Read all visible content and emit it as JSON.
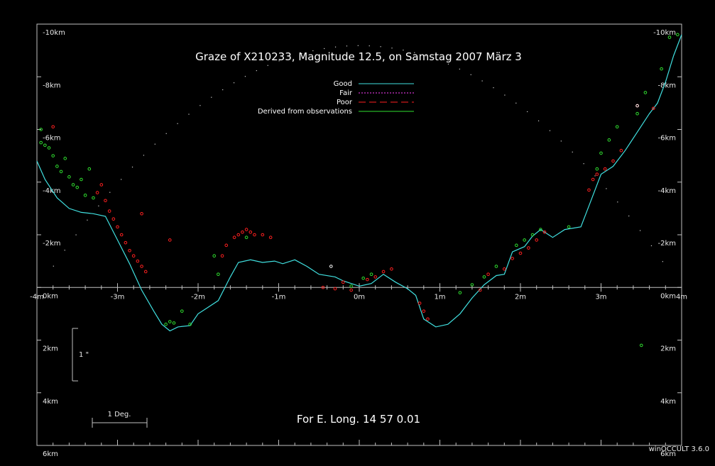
{
  "window": {
    "version": "winOCCULT 3.6.0"
  },
  "chart_data": {
    "type": "scatter",
    "title": "Graze of  X210233,  Magnitude  12.5,  on Samstag  2007  März   3",
    "footer": "For E. Long.   14 57  0.01",
    "scale_bar_deg": "1 Deg.",
    "scale_bar_arcsec": "1 \"",
    "xlim": [
      -4,
      4
    ],
    "ylim": [
      6,
      -10
    ],
    "x_ticks": [
      "-4m",
      "-3m",
      "-2m",
      "-1m",
      "0m",
      "1m",
      "2m",
      "3m",
      "4m"
    ],
    "y_ticks_left": [
      "-10km",
      "-8km",
      "-6km",
      "-4km",
      "-2km",
      "0km",
      "2km",
      "4km",
      "6km"
    ],
    "y_ticks_right": [
      "-10km",
      "-8km",
      "-6km",
      "-4km",
      "-2km",
      "0km",
      "2km",
      "4km",
      "6km"
    ],
    "legend": [
      {
        "label": "Good",
        "color": "#40e0e0",
        "style": "solid"
      },
      {
        "label": "Fair",
        "color": "#ff40ff",
        "style": "dotted"
      },
      {
        "label": "Poor",
        "color": "#ff2020",
        "style": "dashed"
      },
      {
        "label": "Derived from observations",
        "color": "#30e030",
        "style": "solid"
      }
    ],
    "colors": {
      "good": "#40e0e0",
      "red_obs": "#ff2020",
      "green_obs": "#30e030",
      "axis": "#c0c0c0"
    },
    "limb_profile": [
      [
        -4.0,
        -4.8
      ],
      [
        -3.9,
        -4.1
      ],
      [
        -3.75,
        -3.4
      ],
      [
        -3.6,
        -3.0
      ],
      [
        -3.45,
        -2.85
      ],
      [
        -3.3,
        -2.8
      ],
      [
        -3.15,
        -2.7
      ],
      [
        -3.0,
        -1.8
      ],
      [
        -2.85,
        -0.9
      ],
      [
        -2.7,
        0.1
      ],
      [
        -2.55,
        0.9
      ],
      [
        -2.45,
        1.4
      ],
      [
        -2.35,
        1.65
      ],
      [
        -2.25,
        1.5
      ],
      [
        -2.1,
        1.45
      ],
      [
        -2.0,
        1.0
      ],
      [
        -1.9,
        0.8
      ],
      [
        -1.75,
        0.5
      ],
      [
        -1.6,
        -0.4
      ],
      [
        -1.5,
        -0.95
      ],
      [
        -1.35,
        -1.05
      ],
      [
        -1.2,
        -0.95
      ],
      [
        -1.05,
        -1.0
      ],
      [
        -0.95,
        -0.9
      ],
      [
        -0.8,
        -1.05
      ],
      [
        -0.65,
        -0.8
      ],
      [
        -0.5,
        -0.5
      ],
      [
        -0.3,
        -0.4
      ],
      [
        -0.2,
        -0.25
      ],
      [
        -0.1,
        -0.15
      ],
      [
        0.0,
        -0.05
      ],
      [
        0.15,
        -0.15
      ],
      [
        0.3,
        -0.5
      ],
      [
        0.45,
        -0.2
      ],
      [
        0.6,
        0.05
      ],
      [
        0.7,
        0.3
      ],
      [
        0.8,
        1.2
      ],
      [
        0.95,
        1.5
      ],
      [
        1.1,
        1.4
      ],
      [
        1.25,
        1.0
      ],
      [
        1.4,
        0.4
      ],
      [
        1.55,
        -0.1
      ],
      [
        1.7,
        -0.45
      ],
      [
        1.8,
        -0.5
      ],
      [
        1.9,
        -1.35
      ],
      [
        2.05,
        -1.55
      ],
      [
        2.15,
        -1.95
      ],
      [
        2.25,
        -2.2
      ],
      [
        2.4,
        -1.9
      ],
      [
        2.55,
        -2.2
      ],
      [
        2.75,
        -2.3
      ],
      [
        2.85,
        -3.1
      ],
      [
        3.0,
        -4.3
      ],
      [
        3.15,
        -4.6
      ],
      [
        3.3,
        -5.2
      ],
      [
        3.45,
        -5.9
      ],
      [
        3.6,
        -6.6
      ],
      [
        3.7,
        -7.0
      ],
      [
        3.8,
        -7.8
      ],
      [
        3.9,
        -8.8
      ],
      [
        4.0,
        -9.6
      ]
    ],
    "red_observations": [
      [
        -3.8,
        -6.1
      ],
      [
        -3.25,
        -3.6
      ],
      [
        -3.2,
        -3.9
      ],
      [
        -3.15,
        -3.3
      ],
      [
        -3.1,
        -2.9
      ],
      [
        -3.05,
        -2.6
      ],
      [
        -3.0,
        -2.3
      ],
      [
        -2.95,
        -2.0
      ],
      [
        -2.9,
        -1.7
      ],
      [
        -2.85,
        -1.4
      ],
      [
        -2.8,
        -1.2
      ],
      [
        -2.75,
        -1.0
      ],
      [
        -2.7,
        -0.8
      ],
      [
        -2.65,
        -0.6
      ],
      [
        -2.7,
        -2.8
      ],
      [
        -2.35,
        -1.8
      ],
      [
        -1.7,
        -1.2
      ],
      [
        -1.65,
        -1.6
      ],
      [
        -1.55,
        -1.9
      ],
      [
        -1.5,
        -2.0
      ],
      [
        -1.45,
        -2.1
      ],
      [
        -1.4,
        -2.2
      ],
      [
        -1.35,
        -2.1
      ],
      [
        -1.3,
        -2.0
      ],
      [
        -1.2,
        -2.0
      ],
      [
        -1.1,
        -1.9
      ],
      [
        -0.45,
        0.0
      ],
      [
        -0.3,
        0.05
      ],
      [
        -0.2,
        -0.2
      ],
      [
        -0.1,
        0.1
      ],
      [
        0.1,
        -0.3
      ],
      [
        0.2,
        -0.4
      ],
      [
        0.3,
        -0.6
      ],
      [
        0.4,
        -0.7
      ],
      [
        0.75,
        0.6
      ],
      [
        0.8,
        0.9
      ],
      [
        0.85,
        1.2
      ],
      [
        1.5,
        0.1
      ],
      [
        1.6,
        -0.5
      ],
      [
        1.8,
        -0.7
      ],
      [
        1.9,
        -1.1
      ],
      [
        2.0,
        -1.3
      ],
      [
        2.1,
        -1.5
      ],
      [
        2.2,
        -1.8
      ],
      [
        2.3,
        -2.1
      ],
      [
        2.85,
        -3.7
      ],
      [
        2.9,
        -4.1
      ],
      [
        2.95,
        -4.3
      ],
      [
        3.05,
        -4.5
      ],
      [
        3.15,
        -4.8
      ],
      [
        3.25,
        -5.2
      ],
      [
        3.45,
        -6.9
      ],
      [
        3.65,
        -6.8
      ]
    ],
    "green_observations": [
      [
        -3.95,
        -6.0
      ],
      [
        -3.95,
        -5.5
      ],
      [
        -3.9,
        -5.4
      ],
      [
        -3.85,
        -5.3
      ],
      [
        -3.8,
        -5.0
      ],
      [
        -3.75,
        -4.6
      ],
      [
        -3.7,
        -4.4
      ],
      [
        -3.65,
        -4.9
      ],
      [
        -3.6,
        -4.2
      ],
      [
        -3.55,
        -3.9
      ],
      [
        -3.5,
        -3.8
      ],
      [
        -3.45,
        -4.1
      ],
      [
        -3.4,
        -3.5
      ],
      [
        -3.35,
        -4.5
      ],
      [
        -3.3,
        -3.4
      ],
      [
        -2.4,
        1.4
      ],
      [
        -2.35,
        1.3
      ],
      [
        -2.3,
        1.35
      ],
      [
        -2.2,
        0.9
      ],
      [
        -2.1,
        1.4
      ],
      [
        -1.8,
        -1.2
      ],
      [
        -1.75,
        -0.5
      ],
      [
        -1.4,
        -1.9
      ],
      [
        -0.1,
        -0.05
      ],
      [
        0.05,
        -0.35
      ],
      [
        0.15,
        -0.5
      ],
      [
        1.25,
        0.2
      ],
      [
        1.4,
        -0.1
      ],
      [
        1.55,
        -0.4
      ],
      [
        1.7,
        -0.8
      ],
      [
        1.95,
        -1.6
      ],
      [
        2.05,
        -1.8
      ],
      [
        2.15,
        -2.0
      ],
      [
        2.25,
        -2.2
      ],
      [
        2.6,
        -2.3
      ],
      [
        2.95,
        -4.5
      ],
      [
        3.0,
        -5.1
      ],
      [
        3.1,
        -5.6
      ],
      [
        3.2,
        -6.1
      ],
      [
        3.45,
        -6.6
      ],
      [
        3.55,
        -7.4
      ],
      [
        3.75,
        -8.3
      ],
      [
        3.85,
        -9.5
      ],
      [
        3.95,
        -9.6
      ],
      [
        3.5,
        2.2
      ]
    ],
    "white_observations": [
      [
        -0.35,
        -0.8
      ],
      [
        3.45,
        -6.9
      ]
    ]
  }
}
